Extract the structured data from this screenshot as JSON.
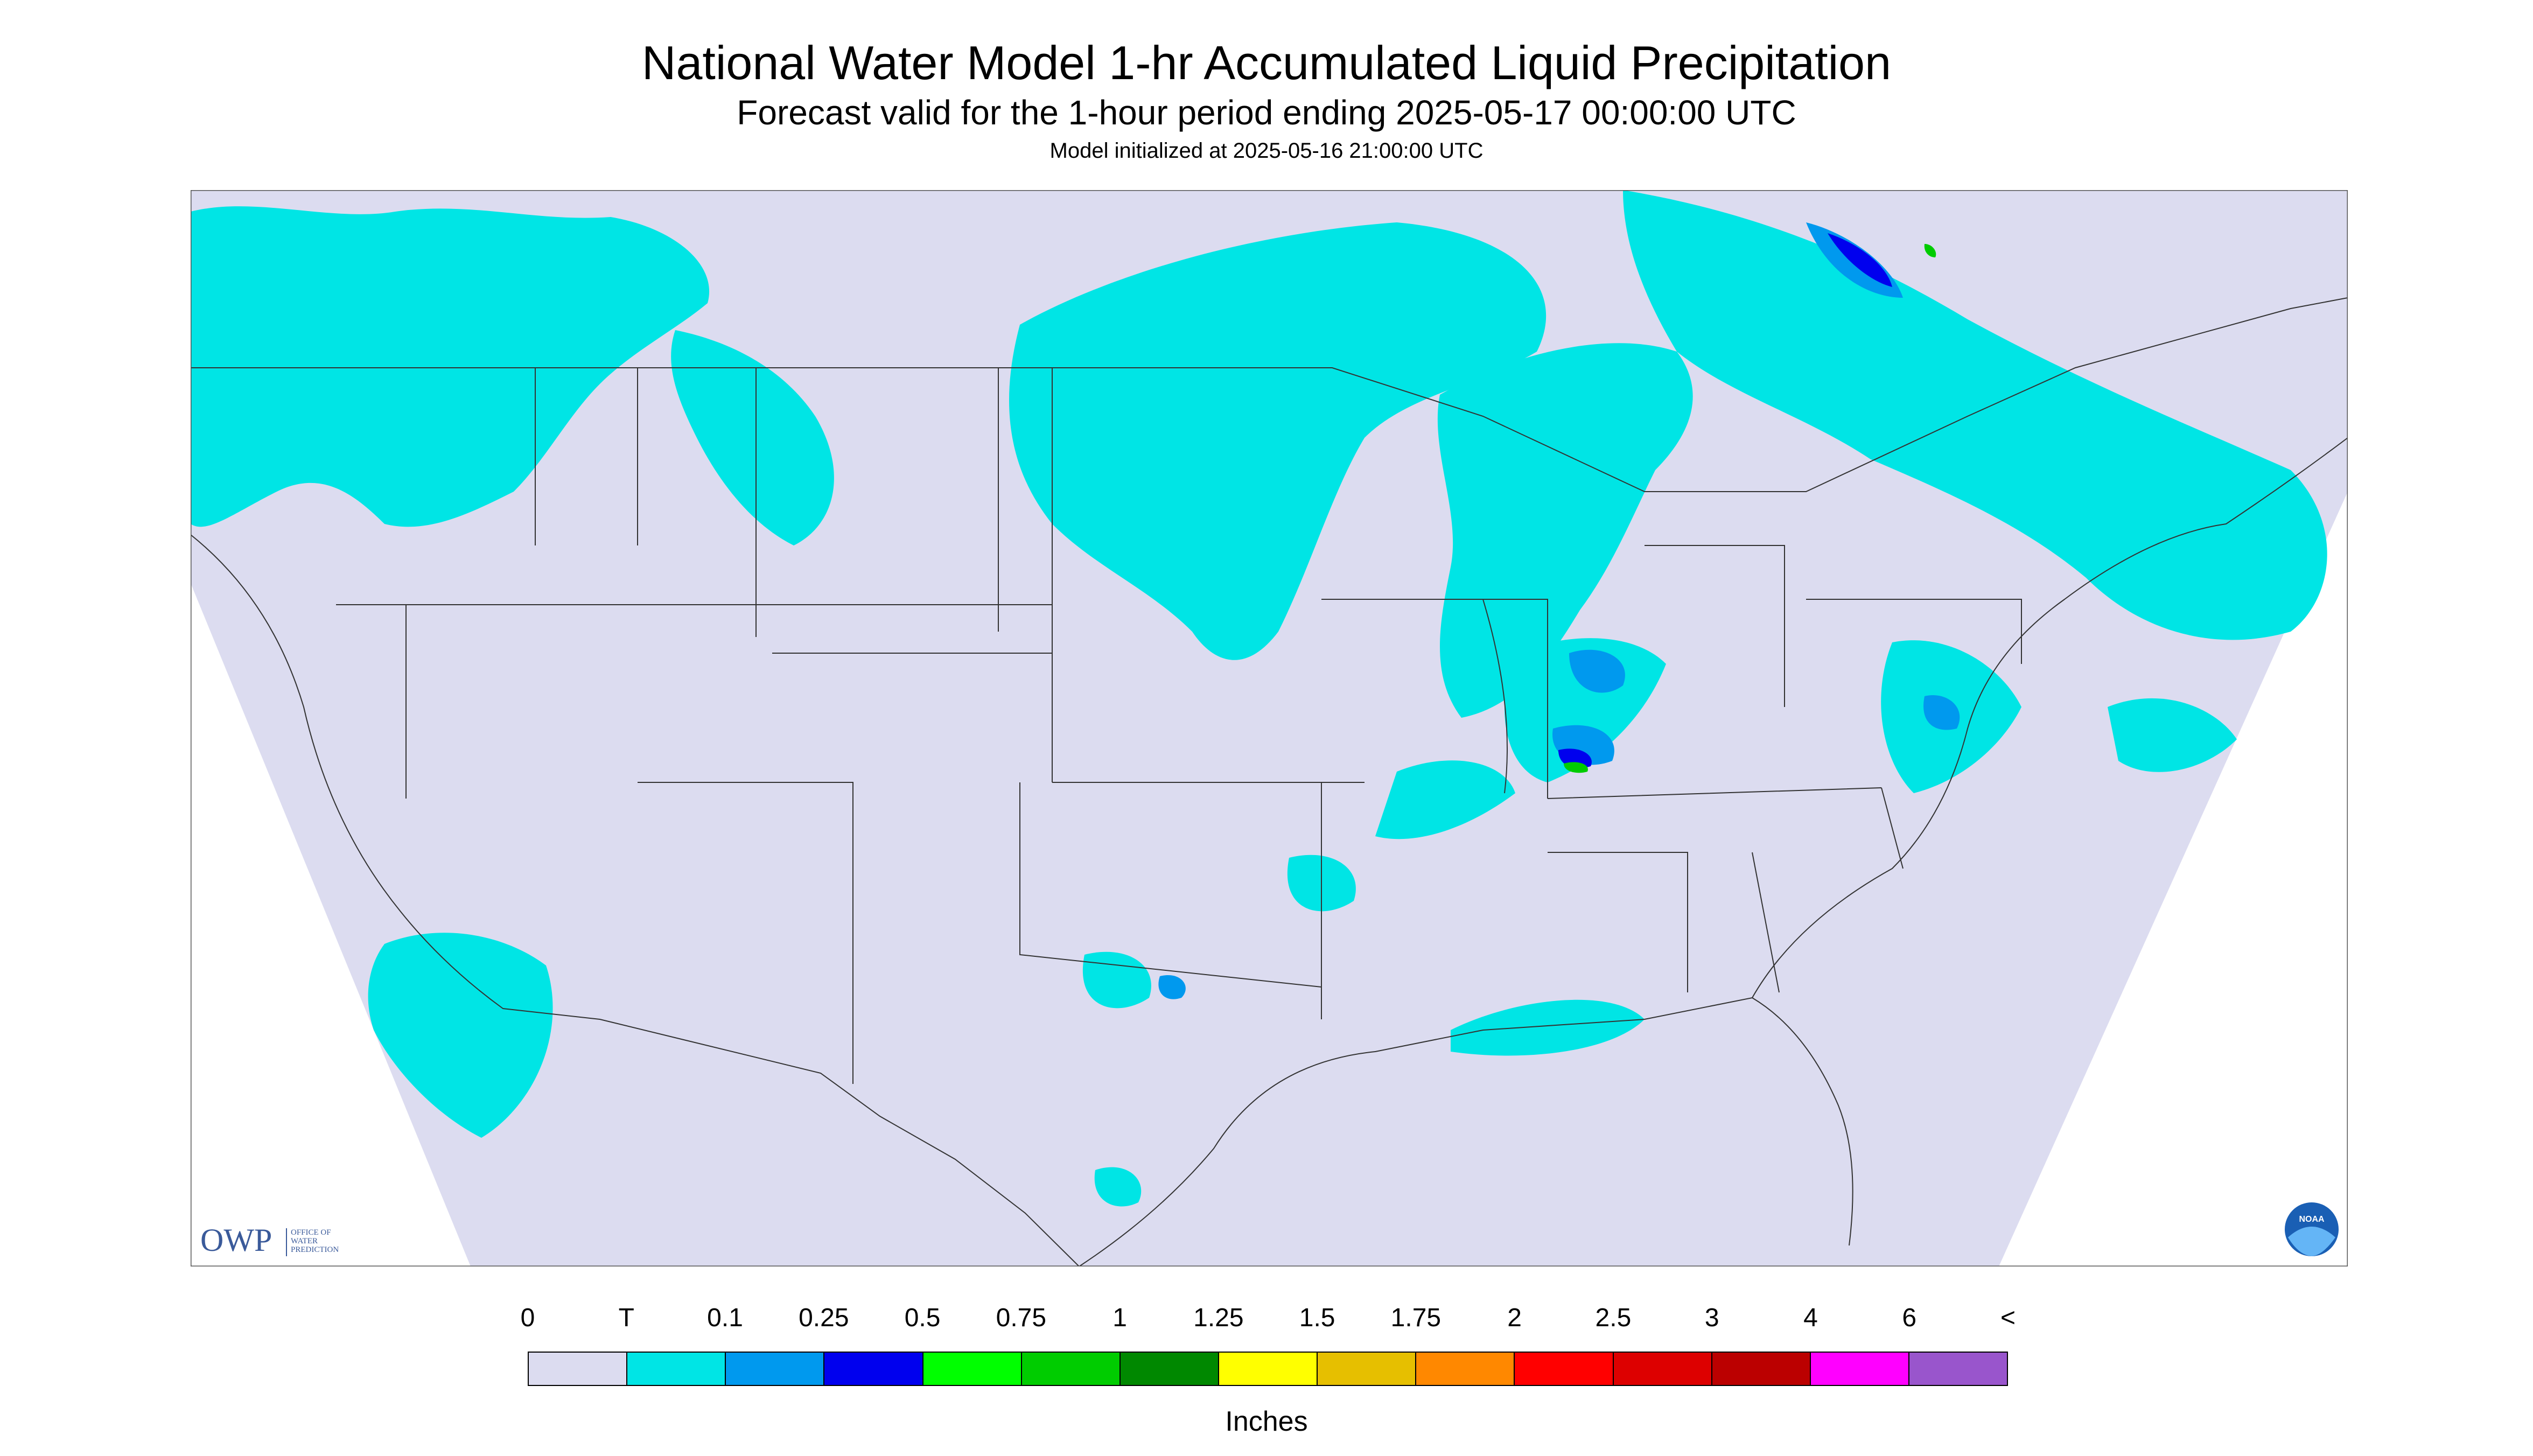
{
  "title": "National Water Model 1-hr Accumulated Liquid Precipitation",
  "subtitle": "Forecast valid for the 1-hour period ending 2025-05-17 00:00:00 UTC",
  "init_text": "Model initialized at 2025-05-16 21:00:00 UTC",
  "logos": {
    "owp_mark": "OWP",
    "owp_name": [
      "OFFICE OF",
      "WATER",
      "PREDICTION"
    ],
    "noaa_mark": "NOAA"
  },
  "map": {
    "region": "Continental United States",
    "background_color": "#dcdcf0",
    "outside_color": "#ffffff"
  },
  "legend": {
    "units": "Inches",
    "tick_labels": [
      "0",
      "T",
      "0.1",
      "0.25",
      "0.5",
      "0.75",
      "1",
      "1.25",
      "1.5",
      "1.75",
      "2",
      "2.5",
      "3",
      "4",
      "6",
      "<"
    ],
    "colors": [
      "#dcdcf0",
      "#00e5e5",
      "#0099ee",
      "#0000ee",
      "#00ff00",
      "#00cc00",
      "#008800",
      "#ffff00",
      "#e6bf00",
      "#ff8800",
      "#ff0000",
      "#dd0000",
      "#bb0000",
      "#ff00ff",
      "#9955cc"
    ]
  }
}
